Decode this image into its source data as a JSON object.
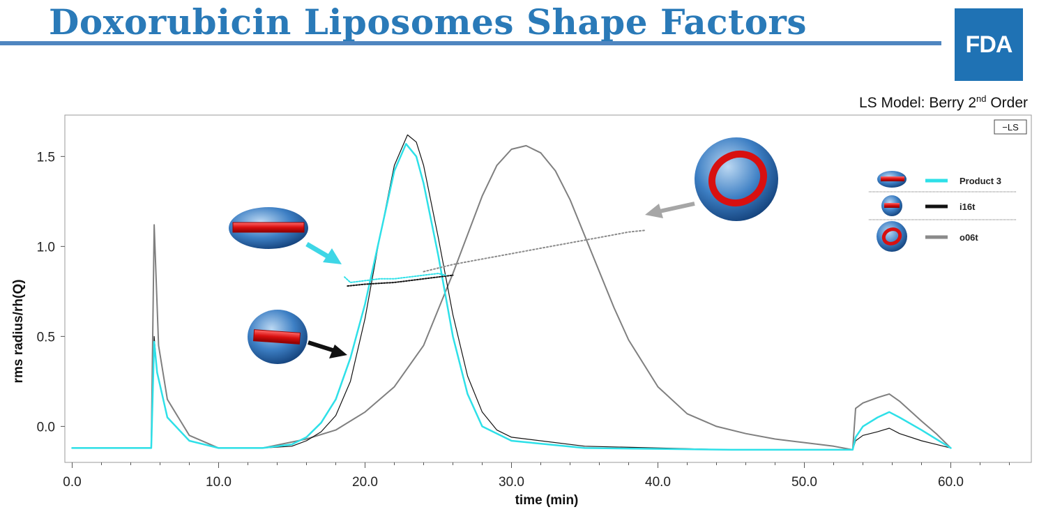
{
  "header": {
    "title": "Doxorubicin Liposomes Shape Factors",
    "logo_text": "FDA",
    "title_color": "#2a7ab8",
    "logo_color": "#1f72b4"
  },
  "model_label": {
    "prefix": "LS Model: Berry 2",
    "sup": "nd",
    "suffix": " Order"
  },
  "corner_badge": "−LS",
  "chart_data": {
    "type": "line",
    "xlabel": "time (min)",
    "ylabel": "rms radius/rh(Q)",
    "xlim": [
      -0.5,
      65.5
    ],
    "ylim": [
      -0.2,
      1.73
    ],
    "x_ticks": [
      0,
      10,
      20,
      30,
      40,
      50,
      60
    ],
    "x_tick_labels": [
      "0.0",
      "10.0",
      "20.0",
      "30.0",
      "40.0",
      "50.0",
      "60.0"
    ],
    "y_ticks": [
      0,
      0.5,
      1.0,
      1.5
    ],
    "y_tick_labels": [
      "0.0",
      "0.5",
      "1.0",
      "1.5"
    ],
    "legend_position": "right",
    "series": [
      {
        "name": "Product 3",
        "color": "#2ee0e8",
        "role": "signal",
        "x": [
          0,
          5.4,
          5.6,
          5.8,
          6.5,
          8,
          10,
          13,
          15,
          16,
          17,
          18,
          19,
          20,
          21,
          22,
          22.8,
          23.5,
          24,
          25,
          26,
          27,
          28,
          30,
          35,
          45,
          53.3,
          53.5,
          54,
          55,
          55.8,
          56.5,
          58,
          59,
          60
        ],
        "y": [
          -0.12,
          -0.12,
          0.47,
          0.3,
          0.05,
          -0.08,
          -0.12,
          -0.12,
          -0.1,
          -0.06,
          0.02,
          0.15,
          0.38,
          0.68,
          1.05,
          1.42,
          1.57,
          1.5,
          1.35,
          0.95,
          0.5,
          0.18,
          0.0,
          -0.08,
          -0.12,
          -0.13,
          -0.13,
          -0.06,
          0.0,
          0.05,
          0.08,
          0.05,
          -0.02,
          -0.07,
          -0.12
        ]
      },
      {
        "name": "i16t",
        "color": "#111111",
        "role": "signal",
        "x": [
          0,
          5.4,
          5.6,
          5.8,
          6.5,
          8,
          10,
          13,
          15,
          16,
          17,
          18,
          19,
          20,
          21,
          22,
          22.9,
          23.5,
          24,
          25,
          26,
          27,
          28,
          29,
          30,
          35,
          45,
          53.3,
          53.5,
          54,
          55,
          55.8,
          56.5,
          58,
          59,
          60
        ],
        "y": [
          -0.12,
          -0.12,
          0.5,
          0.3,
          0.05,
          -0.08,
          -0.12,
          -0.12,
          -0.11,
          -0.08,
          -0.03,
          0.06,
          0.25,
          0.6,
          1.05,
          1.45,
          1.62,
          1.58,
          1.45,
          1.05,
          0.62,
          0.28,
          0.08,
          -0.02,
          -0.06,
          -0.11,
          -0.13,
          -0.13,
          -0.08,
          -0.05,
          -0.03,
          -0.01,
          -0.04,
          -0.08,
          -0.1,
          -0.12
        ]
      },
      {
        "name": "o06t",
        "color": "#7f7f7f",
        "role": "signal",
        "x": [
          0,
          5.4,
          5.6,
          5.9,
          6.5,
          8,
          10,
          13,
          16,
          18,
          20,
          22,
          24,
          26,
          28,
          29,
          30,
          31,
          32,
          33,
          34,
          35,
          36,
          37,
          38,
          40,
          42,
          44,
          46,
          48,
          50,
          52,
          53.3,
          53.5,
          54,
          55,
          55.8,
          56.5,
          58,
          59,
          60
        ],
        "y": [
          -0.12,
          -0.12,
          1.12,
          0.45,
          0.15,
          -0.05,
          -0.12,
          -0.12,
          -0.07,
          -0.02,
          0.08,
          0.22,
          0.45,
          0.85,
          1.28,
          1.45,
          1.54,
          1.56,
          1.52,
          1.42,
          1.26,
          1.06,
          0.86,
          0.66,
          0.48,
          0.22,
          0.07,
          0.0,
          -0.04,
          -0.07,
          -0.09,
          -0.11,
          -0.13,
          0.1,
          0.13,
          0.16,
          0.18,
          0.14,
          0.03,
          -0.04,
          -0.12
        ]
      },
      {
        "name": "Product 3",
        "color": "#2ee0e8",
        "role": "radius",
        "x": [
          18.6,
          19,
          20,
          21,
          22,
          23,
          24,
          25,
          25.5
        ],
        "y": [
          0.83,
          0.8,
          0.81,
          0.82,
          0.82,
          0.83,
          0.84,
          0.85,
          0.84
        ]
      },
      {
        "name": "i16t",
        "color": "#111111",
        "role": "radius",
        "x": [
          18.8,
          20,
          22,
          24,
          26
        ],
        "y": [
          0.78,
          0.79,
          0.8,
          0.82,
          0.84
        ]
      },
      {
        "name": "o06t",
        "color": "#8a8a8a",
        "role": "radius",
        "x": [
          24,
          26,
          28,
          30,
          32,
          34,
          36,
          38,
          39.2
        ],
        "y": [
          0.86,
          0.9,
          0.93,
          0.96,
          0.99,
          1.02,
          1.05,
          1.08,
          1.09
        ]
      }
    ]
  },
  "legend": {
    "items": [
      {
        "label": "Product 3",
        "color": "#2ee0e8",
        "icon": "rod-liposome-icon"
      },
      {
        "label": "i16t",
        "color": "#111111",
        "icon": "small-rod-liposome-icon"
      },
      {
        "label": "o06t",
        "color": "#8a8a8a",
        "icon": "ring-liposome-icon"
      }
    ]
  }
}
